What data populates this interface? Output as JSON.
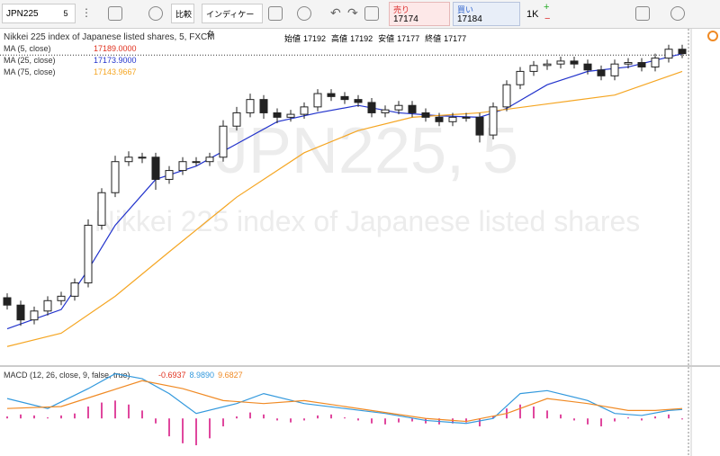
{
  "toolbar": {
    "symbol": "JPN225",
    "interval": "5",
    "compare": "比較",
    "indicators": "インディケータ",
    "sell_label": "売り",
    "sell_price": "17174",
    "buy_label": "買い",
    "buy_price": "17184",
    "quantity": "1K"
  },
  "legend": {
    "title": "Nikkei 225 index of Japanese listed shares, 5, FXCM",
    "ohlc": [
      {
        "label": "始値",
        "value": "17192"
      },
      {
        "label": "高値",
        "value": "17192"
      },
      {
        "label": "安値",
        "value": "17177"
      },
      {
        "label": "終値",
        "value": "17177"
      }
    ],
    "studies": [
      {
        "label": "MA (5, close)",
        "value": "17189.0000",
        "color": "#e0301e"
      },
      {
        "label": "MA (25, close)",
        "value": "17173.9000",
        "color": "#2233cc"
      },
      {
        "label": "MA (75, close)",
        "value": "17143.9667",
        "color": "#f5a623"
      }
    ],
    "macd_label": "MACD (12, 26, close, 9, false, true)",
    "macd_values": [
      {
        "value": "-0.6937",
        "color": "#e0301e"
      },
      {
        "value": "8.9890",
        "color": "#3399dd"
      },
      {
        "value": "9.6827",
        "color": "#f08a24"
      }
    ]
  },
  "watermark": {
    "big": "JPN225, 5",
    "small": "Nikkei 225 index of Japanese listed shares"
  },
  "chart_data": [
    {
      "type": "candlestick",
      "ylim": [
        16980,
        17205
      ],
      "last_price": 17189,
      "open": [
        17025,
        17020,
        17010,
        17016,
        17023,
        17026,
        17035,
        17074,
        17096,
        17117,
        17120,
        17120,
        17105,
        17111,
        17117,
        17117,
        17120,
        17141,
        17150,
        17159,
        17150,
        17147,
        17149,
        17154,
        17163,
        17161,
        17159,
        17157,
        17150,
        17152,
        17155,
        17150,
        17147,
        17144,
        17147,
        17147,
        17135,
        17154,
        17169,
        17178,
        17182,
        17183,
        17185,
        17183,
        17179,
        17175,
        17183,
        17184,
        17181,
        17187,
        17193
      ],
      "high": [
        17028,
        17023,
        17019,
        17026,
        17029,
        17038,
        17078,
        17099,
        17121,
        17124,
        17123,
        17123,
        17114,
        17120,
        17120,
        17123,
        17145,
        17154,
        17163,
        17162,
        17153,
        17152,
        17157,
        17166,
        17166,
        17164,
        17162,
        17160,
        17155,
        17158,
        17158,
        17153,
        17150,
        17150,
        17150,
        17150,
        17157,
        17172,
        17181,
        17185,
        17186,
        17188,
        17188,
        17186,
        17182,
        17186,
        17187,
        17187,
        17190,
        17196,
        17196
      ],
      "low": [
        17017,
        17006,
        17007,
        17013,
        17020,
        17023,
        17032,
        17071,
        17093,
        17114,
        17116,
        17098,
        17102,
        17108,
        17114,
        17114,
        17117,
        17138,
        17147,
        17146,
        17143,
        17144,
        17146,
        17151,
        17158,
        17156,
        17154,
        17147,
        17147,
        17149,
        17147,
        17144,
        17141,
        17141,
        17144,
        17130,
        17132,
        17151,
        17166,
        17175,
        17179,
        17180,
        17180,
        17176,
        17172,
        17172,
        17180,
        17178,
        17178,
        17184,
        17187
      ],
      "close": [
        17020,
        17010,
        17016,
        17023,
        17026,
        17035,
        17074,
        17096,
        17117,
        17120,
        17120,
        17105,
        17111,
        17117,
        17117,
        17120,
        17141,
        17150,
        17159,
        17150,
        17147,
        17149,
        17154,
        17163,
        17161,
        17159,
        17157,
        17150,
        17152,
        17155,
        17150,
        17147,
        17144,
        17147,
        17147,
        17135,
        17154,
        17169,
        17178,
        17182,
        17183,
        17185,
        17183,
        17179,
        17175,
        17183,
        17184,
        17181,
        17187,
        17193,
        17190
      ],
      "series": [
        {
          "color": "#2233cc",
          "x": [
            0,
            4,
            6,
            8,
            11,
            14,
            17,
            20,
            23,
            26,
            29,
            32,
            35,
            37,
            40,
            43,
            46,
            50
          ],
          "values": [
            17004,
            17017,
            17044,
            17074,
            17105,
            17114,
            17129,
            17144,
            17150,
            17155,
            17150,
            17148,
            17147,
            17153,
            17169,
            17178,
            17181,
            17190
          ]
        },
        {
          "color": "#f5a623",
          "x": [
            0,
            4,
            8,
            12,
            17,
            22,
            26,
            30,
            35,
            40,
            45,
            50
          ],
          "values": [
            16992,
            17001,
            17026,
            17056,
            17093,
            17123,
            17138,
            17147,
            17150,
            17156,
            17162,
            17178
          ]
        }
      ]
    },
    {
      "type": "macd",
      "ylim": [
        -36,
        50
      ],
      "hist_color": "#e0479e",
      "histogram": [
        2,
        4,
        3,
        1,
        3,
        5,
        12,
        16,
        18,
        14,
        8,
        -5,
        -18,
        -25,
        -27,
        -20,
        -8,
        2,
        6,
        4,
        -2,
        -4,
        -2,
        3,
        4,
        1,
        -2,
        -5,
        -6,
        -4,
        -3,
        -5,
        -6,
        -5,
        -4,
        -8,
        2,
        10,
        14,
        12,
        8,
        4,
        -2,
        -6,
        -8,
        -3,
        1,
        -2,
        2,
        4,
        -1
      ],
      "series": [
        {
          "color": "#3399dd",
          "x": [
            0,
            3,
            6,
            8,
            10,
            12,
            14,
            17,
            19,
            22,
            25,
            28,
            31,
            34,
            36,
            38,
            40,
            43,
            45,
            47,
            49,
            50
          ],
          "values": [
            20,
            10,
            30,
            45,
            40,
            25,
            5,
            15,
            25,
            15,
            10,
            5,
            -2,
            -5,
            0,
            25,
            28,
            18,
            5,
            3,
            8,
            9
          ]
        },
        {
          "color": "#f08a24",
          "x": [
            0,
            4,
            7,
            10,
            13,
            16,
            19,
            22,
            25,
            28,
            31,
            34,
            37,
            40,
            43,
            46,
            48,
            50
          ],
          "values": [
            10,
            12,
            25,
            38,
            30,
            18,
            15,
            18,
            12,
            6,
            0,
            -3,
            5,
            20,
            15,
            8,
            8,
            10
          ]
        }
      ]
    }
  ]
}
